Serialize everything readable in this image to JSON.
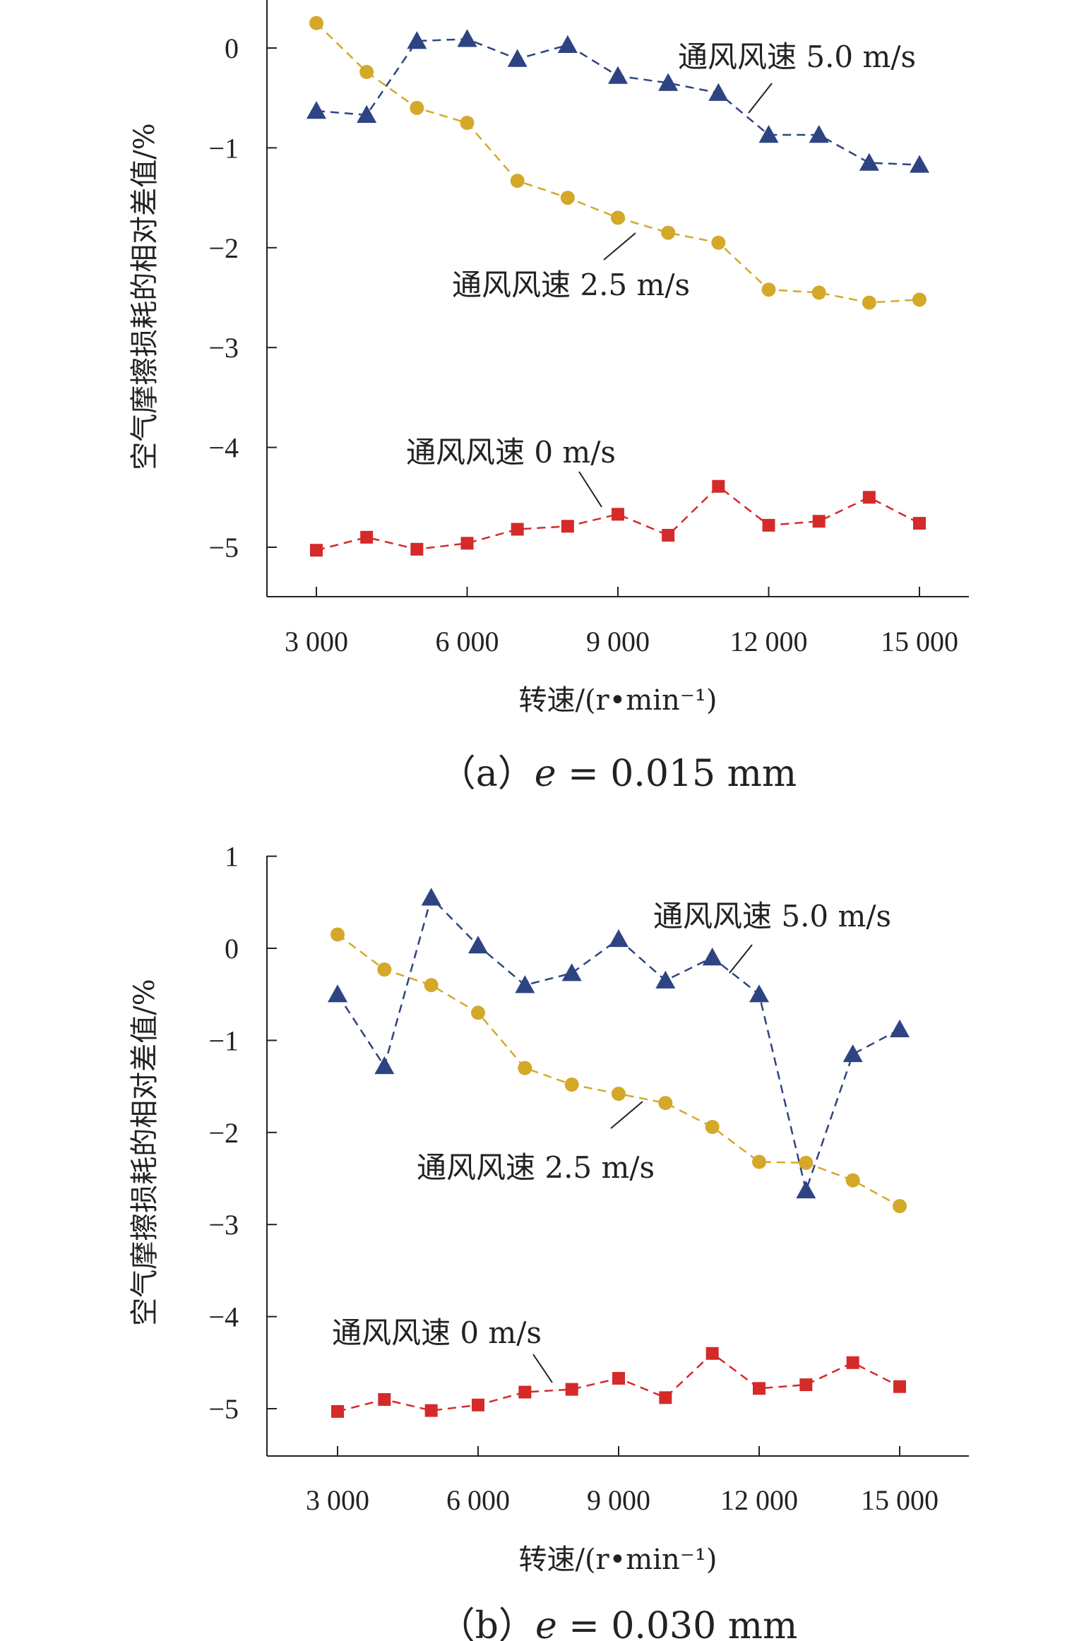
{
  "chart_data": [
    {
      "type": "line",
      "panel": "a",
      "caption_prefix": "（a）",
      "caption_var": "e",
      "caption_rest": " = 0.015 mm",
      "xlabel": "转速/(r•min⁻¹)",
      "ylabel": "空气摩擦损耗的相对差值/%",
      "xlim": [
        2000,
        16000
      ],
      "ylim": [
        -5.5,
        0.5
      ],
      "xticks": [
        3000,
        6000,
        9000,
        12000,
        15000
      ],
      "xtick_labels": [
        "3 000",
        "6 000",
        "9 000",
        "12 000",
        "15 000"
      ],
      "yticks": [
        0,
        -1,
        -2,
        -3,
        -4,
        -5
      ],
      "ytick_labels": [
        "0",
        "−1",
        "−2",
        "−3",
        "−4",
        "−5"
      ],
      "x": [
        3000,
        4000,
        5000,
        6000,
        7000,
        8000,
        9000,
        10000,
        11000,
        12000,
        13000,
        14000,
        15000
      ],
      "series": [
        {
          "name": "通风风速 5.0 m/s",
          "marker": "triangle",
          "color": "#2e4482",
          "values": [
            -0.63,
            -0.67,
            0.07,
            0.09,
            -0.11,
            0.03,
            -0.28,
            -0.35,
            -0.45,
            -0.87,
            -0.87,
            -1.15,
            -1.17
          ]
        },
        {
          "name": "通风风速 2.5 m/s",
          "marker": "circle",
          "color": "#d4a829",
          "values": [
            0.25,
            -0.24,
            -0.6,
            -0.75,
            -1.33,
            -1.5,
            -1.7,
            -1.85,
            -1.95,
            -2.42,
            -2.45,
            -2.55,
            -2.52
          ]
        },
        {
          "name": "通风风速 0 m/s",
          "marker": "square",
          "color": "#d42a2a",
          "values": [
            -5.03,
            -4.9,
            -5.02,
            -4.96,
            -4.82,
            -4.79,
            -4.67,
            -4.88,
            -4.39,
            -4.78,
            -4.74,
            -4.5,
            -4.76
          ]
        }
      ],
      "annotations": [
        {
          "text": "通风风速 5.0 m/s",
          "series": 0
        },
        {
          "text": "通风风速 2.5 m/s",
          "series": 1
        },
        {
          "text": "通风风速 0 m/s",
          "series": 2
        }
      ]
    },
    {
      "type": "line",
      "panel": "b",
      "caption_prefix": "（b）",
      "caption_var": "e",
      "caption_rest": " = 0.030 mm",
      "xlabel": "转速/(r•min⁻¹)",
      "ylabel": "空气摩擦损耗的相对差值/%",
      "xlim": [
        1500,
        16500
      ],
      "ylim": [
        -5.5,
        1
      ],
      "xticks": [
        3000,
        6000,
        9000,
        12000,
        15000
      ],
      "xtick_labels": [
        "3 000",
        "6 000",
        "9 000",
        "12 000",
        "15 000"
      ],
      "yticks": [
        1,
        0,
        -1,
        -2,
        -3,
        -4,
        -5
      ],
      "ytick_labels": [
        "1",
        "0",
        "−1",
        "−2",
        "−3",
        "−4",
        "−5"
      ],
      "x": [
        3000,
        4000,
        5000,
        6000,
        7000,
        8000,
        9000,
        10000,
        11000,
        12000,
        13000,
        14000,
        15000
      ],
      "series": [
        {
          "name": "通风风速 5.0 m/s",
          "marker": "triangle",
          "color": "#2e4482",
          "values": [
            -0.5,
            -1.28,
            0.55,
            0.03,
            -0.4,
            -0.27,
            0.1,
            -0.35,
            -0.1,
            -0.5,
            -2.63,
            -1.15,
            -0.88
          ]
        },
        {
          "name": "通风风速 2.5 m/s",
          "marker": "circle",
          "color": "#d4a829",
          "values": [
            0.15,
            -0.23,
            -0.4,
            -0.7,
            -1.3,
            -1.48,
            -1.58,
            -1.68,
            -1.94,
            -2.32,
            -2.33,
            -2.52,
            -2.8
          ]
        },
        {
          "name": "通风风速 0 m/s",
          "marker": "square",
          "color": "#d42a2a",
          "values": [
            -5.03,
            -4.9,
            -5.02,
            -4.96,
            -4.82,
            -4.79,
            -4.67,
            -4.88,
            -4.4,
            -4.78,
            -4.74,
            -4.5,
            -4.76
          ]
        }
      ],
      "annotations": [
        {
          "text": "通风风速 5.0 m/s",
          "series": 0
        },
        {
          "text": "通风风速 2.5 m/s",
          "series": 1
        },
        {
          "text": "通风风速 0 m/s",
          "series": 2
        }
      ]
    }
  ]
}
